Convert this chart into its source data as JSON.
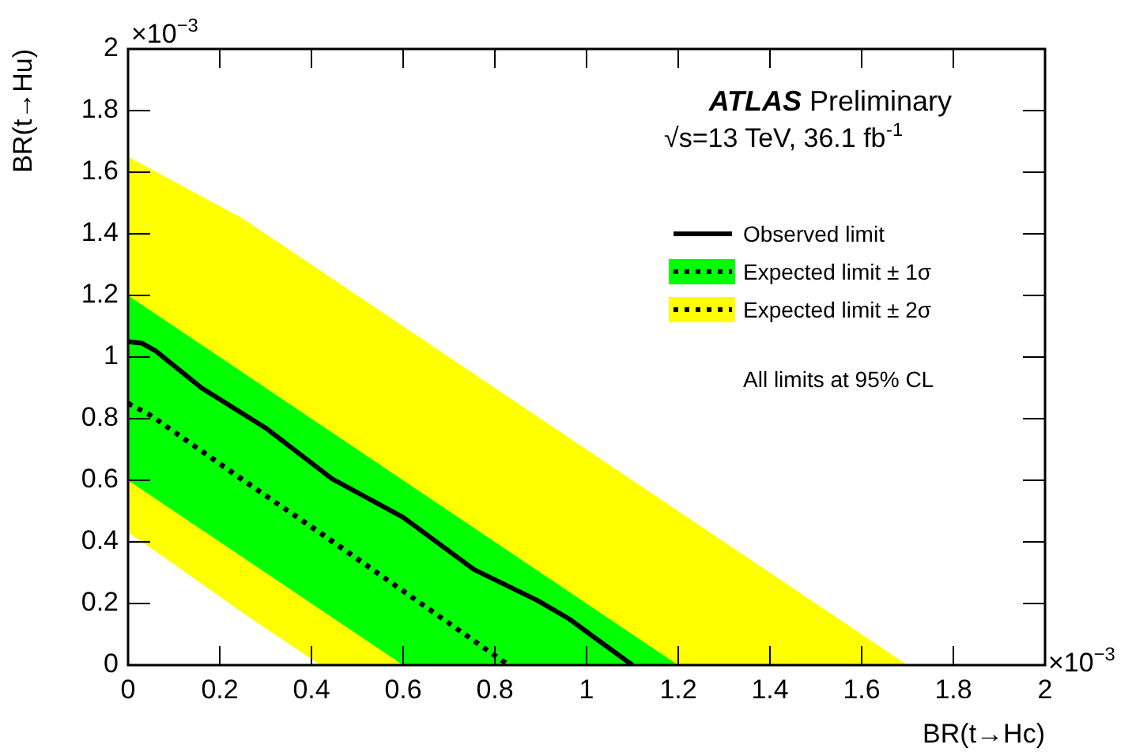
{
  "chart_data": {
    "type": "line",
    "xlabel": "BR(t→Hc)",
    "ylabel": "BR(t→Hu)",
    "annotations": [
      "ATLAS Preliminary",
      "√s=13 TeV, 36.1 fb$^{-1}$",
      "All limits at 95% CL",
      "×10$^{−3}$",
      "×10$^{−3}$"
    ],
    "xlim": [
      0,
      2
    ],
    "xticks": [
      0,
      0.2,
      0.4,
      0.6,
      0.8,
      1,
      1.2,
      1.4,
      1.6,
      1.8,
      2
    ],
    "ylim": [
      0,
      2
    ],
    "yticks": [
      0,
      0.2,
      0.4,
      0.6,
      0.8,
      1,
      1.2,
      1.4,
      1.6,
      1.8,
      2
    ],
    "colors": [
      "#ffff00",
      "#00ff00"
    ],
    "grid": false,
    "legend": "top right",
    "marker": "none",
    "series": [
      {
        "name": "Expected limit ± 2σ",
        "color": "#000000",
        "line_style": "dotted",
        "x": [
          0,
          0.05,
          0.25,
          0.42,
          0.83,
          1.7
        ],
        "values": [
          0.85,
          0.81,
          0.6,
          0.43,
          0,
          null
        ],
        "upper": [
          1.65,
          1.61,
          1.45,
          1.28,
          0.87,
          0
        ],
        "lower": [
          0.43,
          0.38,
          0.17,
          0,
          0,
          0
        ]
      },
      {
        "name": "Expected limit ± 1σ",
        "color": "#000000",
        "line_style": "dotted",
        "x": [
          0,
          0.05,
          0.6,
          0.83,
          1.2
        ],
        "values": [
          0.85,
          0.81,
          0.24,
          0,
          null
        ],
        "upper": [
          1.2,
          1.15,
          0.6,
          0.37,
          0
        ],
        "lower": [
          0.6,
          0.55,
          0,
          0,
          0
        ]
      },
      {
        "name": "Observed limit",
        "color": "#000000",
        "line_style": "solid",
        "x": [
          0,
          0.03,
          0.06,
          0.16,
          0.3,
          0.445,
          0.6,
          0.755,
          0.893,
          0.962,
          1.1
        ],
        "values": [
          1.05,
          1.045,
          1.02,
          0.9,
          0.77,
          0.605,
          0.48,
          0.31,
          0.21,
          0.15,
          0
        ]
      }
    ]
  }
}
